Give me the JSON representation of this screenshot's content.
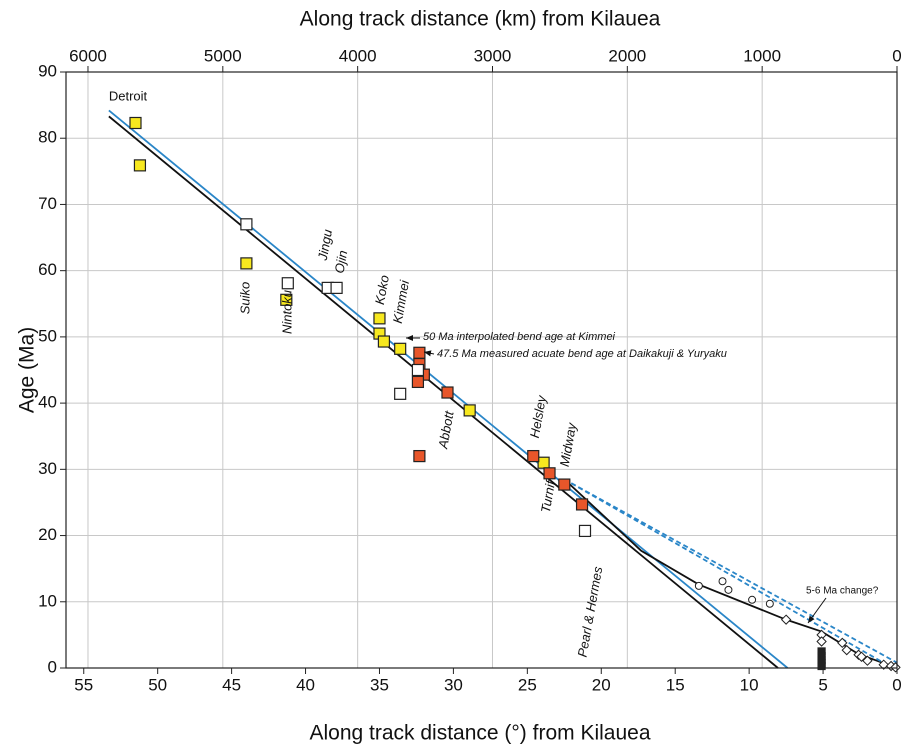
{
  "chart_data": {
    "type": "scatter",
    "x_label": "Along track distance (°) from Kilauea",
    "x2_label": "Along track distance (km) from Kilauea",
    "y_label": "Age (Ma)",
    "xlim": [
      56.2,
      0
    ],
    "xticks": [
      55,
      50,
      45,
      40,
      35,
      30,
      25,
      20,
      15,
      10,
      5,
      0
    ],
    "x2lim": [
      6163,
      0
    ],
    "x2ticks": [
      6000,
      5000,
      4000,
      3000,
      2000,
      1000,
      0
    ],
    "ylim": [
      0,
      90
    ],
    "yticks": [
      0,
      10,
      20,
      30,
      40,
      50,
      60,
      70,
      80,
      90
    ],
    "grid": true,
    "series": [
      {
        "marker": "square",
        "color": "#f7e81f",
        "x": [
          51.5,
          51.2,
          44.0,
          41.3,
          35.0,
          35.0,
          34.7,
          33.6,
          28.9,
          23.9
        ],
        "y": [
          82.3,
          75.9,
          61.1,
          55.6,
          52.8,
          50.5,
          49.3,
          48.2,
          38.9,
          31.0
        ]
      },
      {
        "marker": "square",
        "color": "#e8562a",
        "x": [
          32.3,
          32.3,
          32.0,
          32.4,
          30.4,
          32.3,
          24.6,
          23.5,
          22.5,
          21.3
        ],
        "y": [
          47.6,
          45.9,
          44.3,
          43.2,
          41.6,
          32.0,
          32.0,
          29.4,
          27.7,
          24.7
        ]
      },
      {
        "marker": "square",
        "color": "#ffffff",
        "x": [
          44.0,
          41.2,
          38.5,
          37.9,
          33.6,
          32.4,
          21.1
        ],
        "y": [
          67.0,
          58.1,
          57.4,
          57.4,
          41.4,
          45.0,
          20.7
        ]
      },
      {
        "marker": "circle",
        "color": "#ffffff",
        "x": [
          13.4,
          11.8,
          11.4,
          9.8,
          8.6
        ],
        "y": [
          12.4,
          13.1,
          11.8,
          10.3,
          9.7
        ]
      },
      {
        "marker": "diamond",
        "color": "#ffffff",
        "x": [
          7.5,
          5.1,
          5.1,
          3.7,
          3.4,
          2.6,
          2.4,
          2.0,
          0.9,
          0.4,
          0.1
        ],
        "y": [
          7.3,
          5.0,
          4.0,
          3.8,
          2.7,
          2.0,
          1.7,
          1.1,
          0.5,
          0.3,
          0.1
        ]
      },
      {
        "marker": "small-square",
        "color": "#222222",
        "x": [
          5.1,
          5.1,
          5.1,
          5.1,
          5.1
        ],
        "y": [
          2.5,
          1.8,
          1.2,
          0.7,
          0.3
        ]
      },
      {
        "marker": "line",
        "color": "#111111",
        "x": [
          53.3,
          8.05
        ],
        "y": [
          83.3,
          0
        ]
      },
      {
        "marker": "line",
        "color": "#2a86c8",
        "x": [
          53.3,
          7.4
        ],
        "y": [
          84.2,
          0
        ]
      },
      {
        "marker": "line",
        "color": "#111111",
        "x": [
          22.5,
          17.3,
          13.4,
          7.5,
          5.1,
          2.6,
          0
        ],
        "y": [
          28.5,
          17.7,
          12.6,
          7.3,
          5.5,
          2.1,
          0
        ]
      },
      {
        "marker": "dashed-line",
        "color": "#2a86c8",
        "x": [
          22.5,
          0
        ],
        "y": [
          28.5,
          0.8
        ]
      },
      {
        "marker": "dashed-line",
        "color": "#2a86c8",
        "x": [
          22.5,
          0.3
        ],
        "y": [
          28.5,
          0
        ]
      }
    ],
    "annotations": [
      "Detroit",
      "Suiko",
      "Nintoku",
      "Jingu",
      "Ojin",
      "Koko",
      "Kimmei",
      "Abbott",
      "Helsley",
      "Turnif",
      "Midway",
      "Pearl & Hermes",
      "50 Ma interpolated bend age at Kimmei",
      "47.5 Ma measured acuate bend age at Daikakuji & Yuryaku",
      "5-6 Ma change?"
    ]
  }
}
